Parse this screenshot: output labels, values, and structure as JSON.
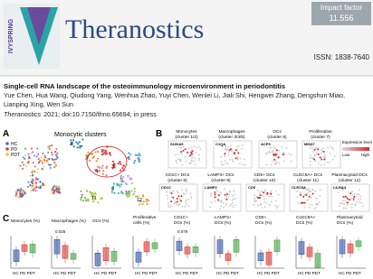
{
  "header": {
    "logo_text": "IVYSPRING",
    "journal": "Theranostics",
    "impact_label": "Impact factor",
    "impact_value": "11.556",
    "issn": "ISSN: 1838-7640"
  },
  "article": {
    "title": "Single-cell RNA landscape of the osteoimmunology microenvironment in periodontitis",
    "authors": "Yue Chen, Hua Wang, Qiudong Yang, Wenhua Zhao, Yuyi Chen, Wenlei Li, Jiali Shi, Hengwei Zhang, Dengshun Miao, Lianping Xing, Wen Sun",
    "journal": "Theranostics",
    "citation": "2021; doi:10.7150/thno.65694; in press"
  },
  "figure": {
    "panel_a": {
      "label": "A",
      "title": "Monocytic clusters",
      "legend": [
        "HC",
        "PD",
        "PDT"
      ],
      "clusters": [
        "1",
        "2",
        "3",
        "4",
        "5",
        "6",
        "7",
        "8",
        "9",
        "10",
        "11",
        "12"
      ]
    },
    "panel_b": {
      "label": "B",
      "plots": [
        {
          "title": [
            "Monocytes",
            "(cluster 1/2)"
          ],
          "gene": "S100A9"
        },
        {
          "title": [
            "Macrophages",
            "(cluster 3/4/5)"
          ],
          "gene": "C1QA"
        },
        {
          "title": [
            "OCs",
            "(cluster 6)"
          ],
          "gene": "ACP5"
        },
        {
          "title": [
            "Proliferative",
            "(cluster 7)"
          ],
          "gene": "MKI67"
        },
        {
          "title": [
            "CD1C+ DCs",
            "(cluster 8)"
          ],
          "gene": "CD1C"
        },
        {
          "title": [
            "LAMP3+ DCs",
            "(cluster 9)"
          ],
          "gene": "LAMP3"
        },
        {
          "title": [
            "CD5+ DCs",
            "(cluster 10)"
          ],
          "gene": "CD5"
        },
        {
          "title": [
            "CLEC9A+ DCs",
            "(cluster 11)"
          ],
          "gene": "CLEC9A"
        },
        {
          "title": [
            "Plasmacytoid DCs",
            "(cluster 12)"
          ],
          "gene": "LILRA4"
        }
      ],
      "legend_title": "Expression level",
      "low": "Low",
      "high": "High"
    },
    "panel_c": {
      "label": "C",
      "plots": [
        {
          "title": [
            "Monocytes (%)"
          ]
        },
        {
          "title": [
            "Macrophages (%)"
          ],
          "p": "0.025"
        },
        {
          "title": [
            "OCs (%)"
          ]
        },
        {
          "title": [
            "Proliferative",
            "cells (%)"
          ]
        },
        {
          "title": [
            "CD1C+",
            "DCs (%)"
          ],
          "p": "0.079"
        },
        {
          "title": [
            "LAMP3+",
            "DCs (%)"
          ]
        },
        {
          "title": [
            "CD5+",
            "DCs (%)"
          ]
        },
        {
          "title": [
            "CLEC9A+",
            "DCs (%)"
          ]
        },
        {
          "title": [
            "Plasmacytoid",
            "DCs (%)"
          ]
        }
      ],
      "groups": "HC PD PDT"
    }
  }
}
